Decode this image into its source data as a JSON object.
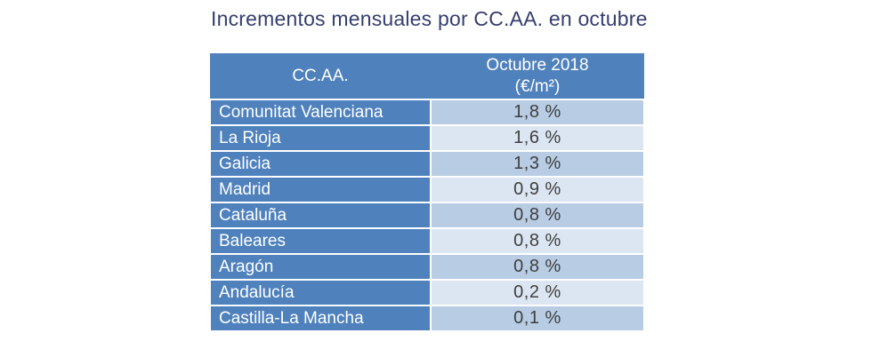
{
  "title": "Incrementos mensuales por CC.AA. en octubre",
  "table": {
    "header": {
      "region": "CC.AA.",
      "value_line1": "Octubre 2018",
      "value_line2": "(€/m²)"
    },
    "rows": [
      {
        "region": "Comunitat Valenciana",
        "value": "1,8 %"
      },
      {
        "region": "La Rioja",
        "value": "1,6 %"
      },
      {
        "region": "Galicia",
        "value": "1,3 %"
      },
      {
        "region": "Madrid",
        "value": "0,9 %"
      },
      {
        "region": "Cataluña",
        "value": "0,8 %"
      },
      {
        "region": "Baleares",
        "value": "0,8 %"
      },
      {
        "region": "Aragón",
        "value": "0,8 %"
      },
      {
        "region": "Andalucía",
        "value": "0,2 %"
      },
      {
        "region": "Castilla-La Mancha",
        "value": "0,1 %"
      }
    ]
  },
  "colors": {
    "header_bg": "#4F81BD",
    "region_cell_bg": "#4F81BD",
    "band_dark": "#B8CCE4",
    "band_light": "#DCE6F2",
    "title_text": "#343E6E",
    "value_text": "#3F3F3F",
    "header_text": "#FFFFFF",
    "background": "#FFFFFF"
  },
  "chart_data": {
    "type": "table",
    "title": "Incrementos mensuales por CC.AA. en octubre",
    "columns": [
      "CC.AA.",
      "Octubre 2018 (€/m²)"
    ],
    "categories": [
      "Comunitat Valenciana",
      "La Rioja",
      "Galicia",
      "Madrid",
      "Cataluña",
      "Baleares",
      "Aragón",
      "Andalucía",
      "Castilla-La Mancha"
    ],
    "values": [
      1.8,
      1.6,
      1.3,
      0.9,
      0.8,
      0.8,
      0.8,
      0.2,
      0.1
    ],
    "value_labels": [
      "1,8 %",
      "1,6 %",
      "1,3 %",
      "0,9 %",
      "0,8 %",
      "0,8 %",
      "0,8 %",
      "0,2 %",
      "0,1 %"
    ],
    "unit": "%",
    "banding": "alternating rows in value column",
    "legend_position": "none",
    "grid": false
  }
}
